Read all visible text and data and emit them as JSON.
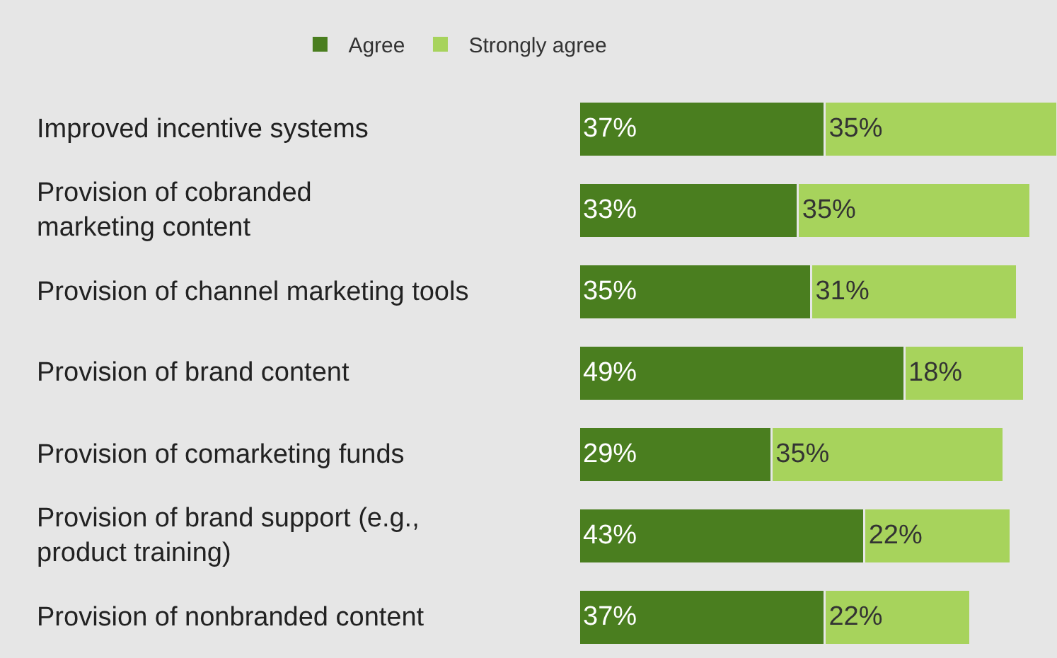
{
  "chart_data": {
    "type": "bar",
    "orientation": "horizontal",
    "stacked": true,
    "legend": "top left",
    "categories": [
      "Improved incentive systems",
      "Provision of cobranded\nmarketing content",
      "Provision of channel marketing tools",
      "Provision of brand content",
      "Provision of comarketing funds",
      "Provision of brand support (e.g.,\nproduct training)",
      "Provision of nonbranded content"
    ],
    "series": [
      {
        "name": "Agree",
        "color": "#4a7e1f",
        "values": [
          37,
          33,
          35,
          49,
          29,
          43,
          37
        ],
        "value_labels": [
          "37%",
          "33%",
          "35%",
          "49%",
          "29%",
          "43%",
          "37%"
        ]
      },
      {
        "name": "Strongly agree",
        "color": "#a7d35c",
        "values": [
          35,
          35,
          31,
          18,
          35,
          22,
          22
        ],
        "value_labels": [
          "35%",
          "35%",
          "31%",
          "18%",
          "35%",
          "22%",
          "22%"
        ]
      }
    ]
  }
}
